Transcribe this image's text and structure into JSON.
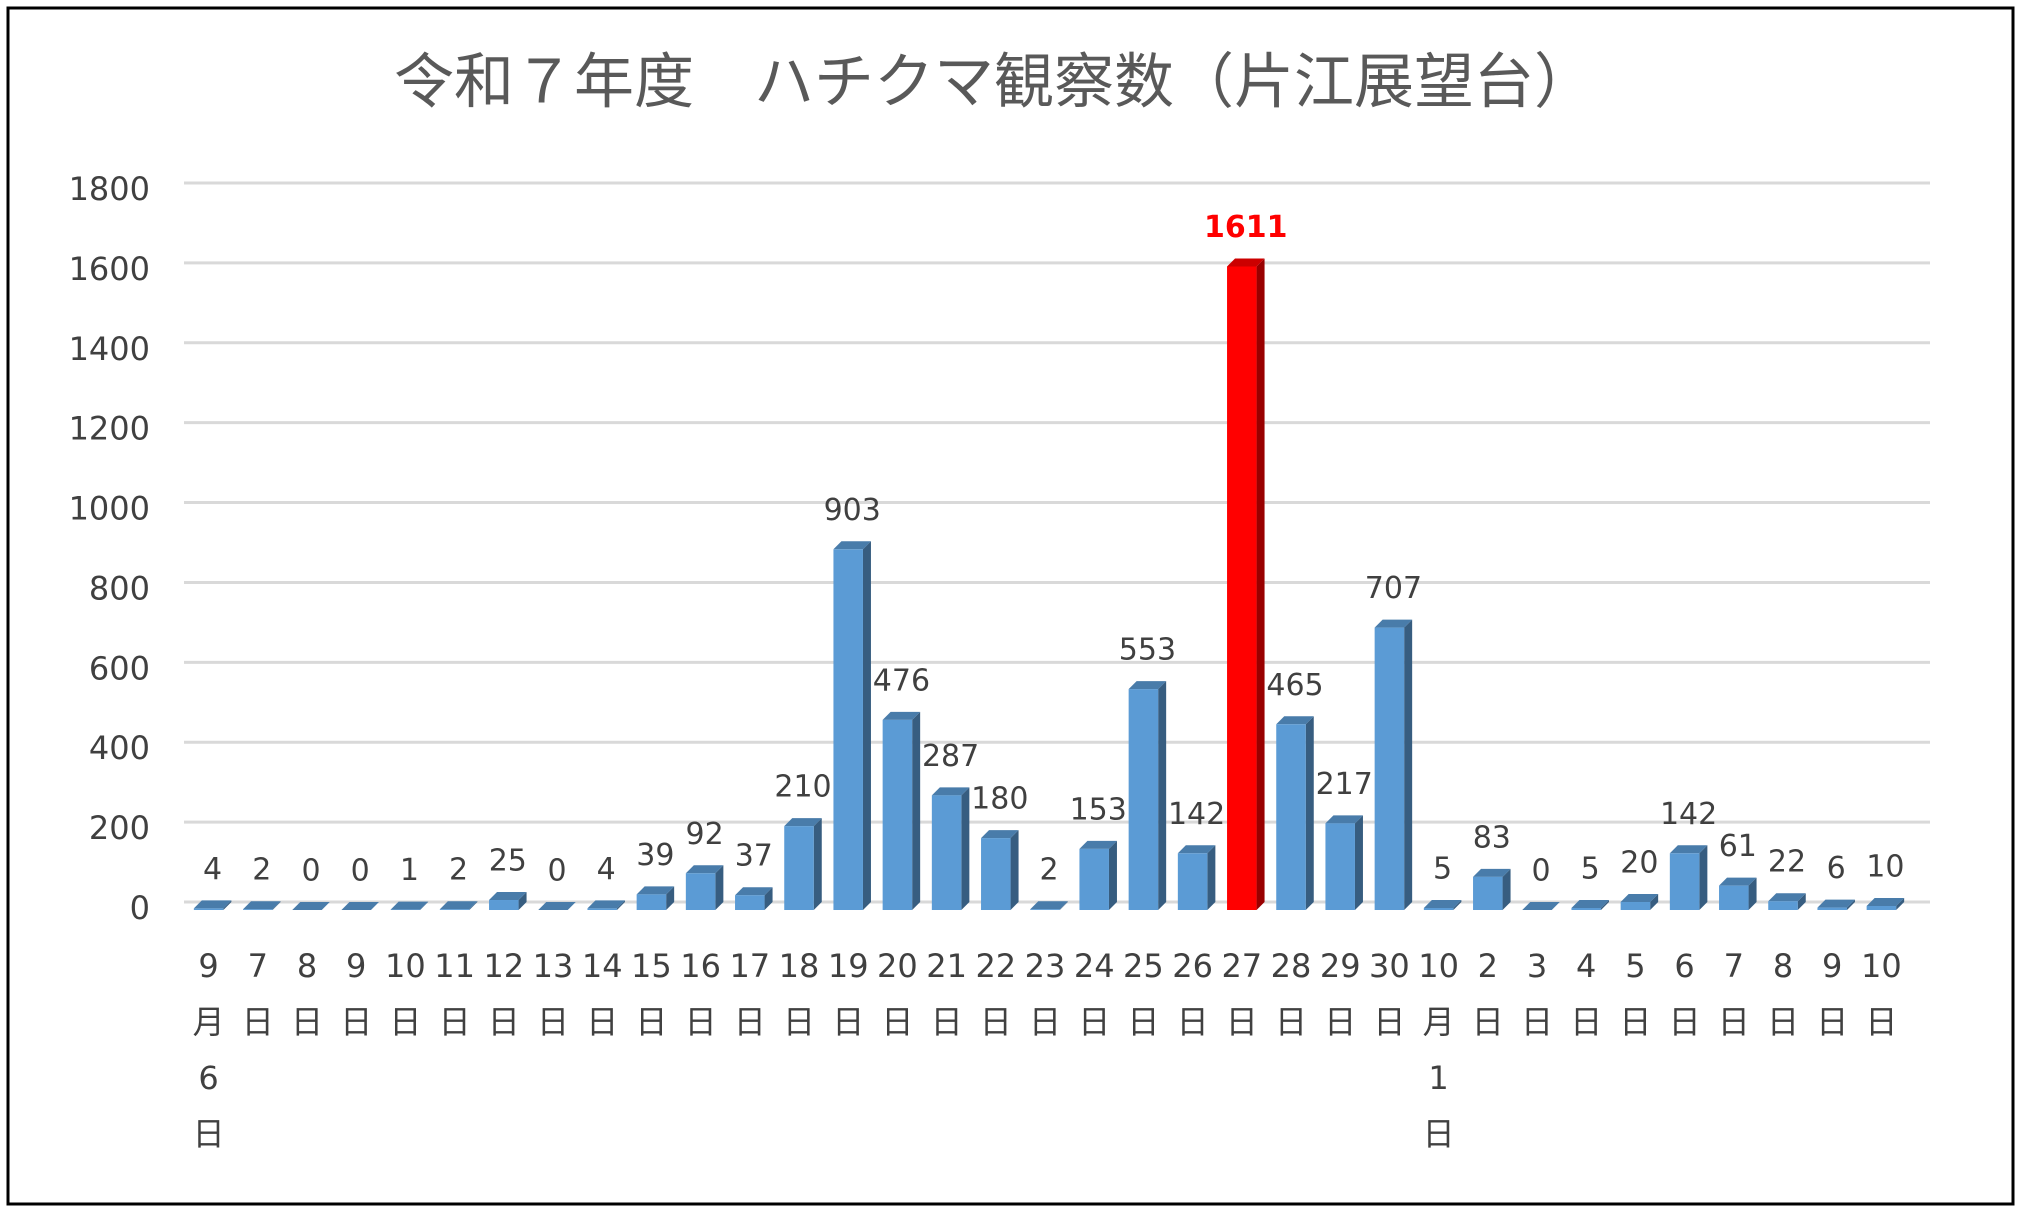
{
  "chart_data": {
    "type": "bar",
    "title": "令和７年度　ハチクマ観察数（片江展望台）",
    "categories": [
      "9月6日",
      "7日",
      "8日",
      "9日",
      "10日",
      "11日",
      "12日",
      "13日",
      "14日",
      "15日",
      "16日",
      "17日",
      "18日",
      "19日",
      "20日",
      "21日",
      "22日",
      "23日",
      "24日",
      "25日",
      "26日",
      "27日",
      "28日",
      "29日",
      "30日",
      "10月1日",
      "2日",
      "3日",
      "4日",
      "5日",
      "6日",
      "7日",
      "8日",
      "9日",
      "10日"
    ],
    "values": [
      4,
      2,
      0,
      0,
      1,
      2,
      25,
      0,
      4,
      39,
      92,
      37,
      210,
      903,
      476,
      287,
      180,
      2,
      153,
      553,
      142,
      1611,
      465,
      217,
      707,
      5,
      83,
      0,
      5,
      20,
      142,
      61,
      22,
      6,
      10
    ],
    "color": "#5b9bd5",
    "colors": [
      "#5b9bd5",
      "#5b9bd5",
      "#5b9bd5",
      "#5b9bd5",
      "#5b9bd5",
      "#5b9bd5",
      "#5b9bd5",
      "#5b9bd5",
      "#5b9bd5",
      "#5b9bd5",
      "#5b9bd5",
      "#5b9bd5",
      "#5b9bd5",
      "#5b9bd5",
      "#5b9bd5",
      "#5b9bd5",
      "#5b9bd5",
      "#5b9bd5",
      "#5b9bd5",
      "#5b9bd5",
      "#5b9bd5",
      "#ff0000",
      "#5b9bd5",
      "#5b9bd5",
      "#5b9bd5",
      "#5b9bd5",
      "#5b9bd5",
      "#5b9bd5",
      "#5b9bd5",
      "#5b9bd5",
      "#5b9bd5",
      "#5b9bd5",
      "#5b9bd5",
      "#5b9bd5",
      "#5b9bd5"
    ],
    "ylim": [
      0,
      1800
    ],
    "yticks": [
      0,
      200,
      400,
      600,
      800,
      1000,
      1200,
      1400,
      1600,
      1800
    ],
    "grid": true
  }
}
